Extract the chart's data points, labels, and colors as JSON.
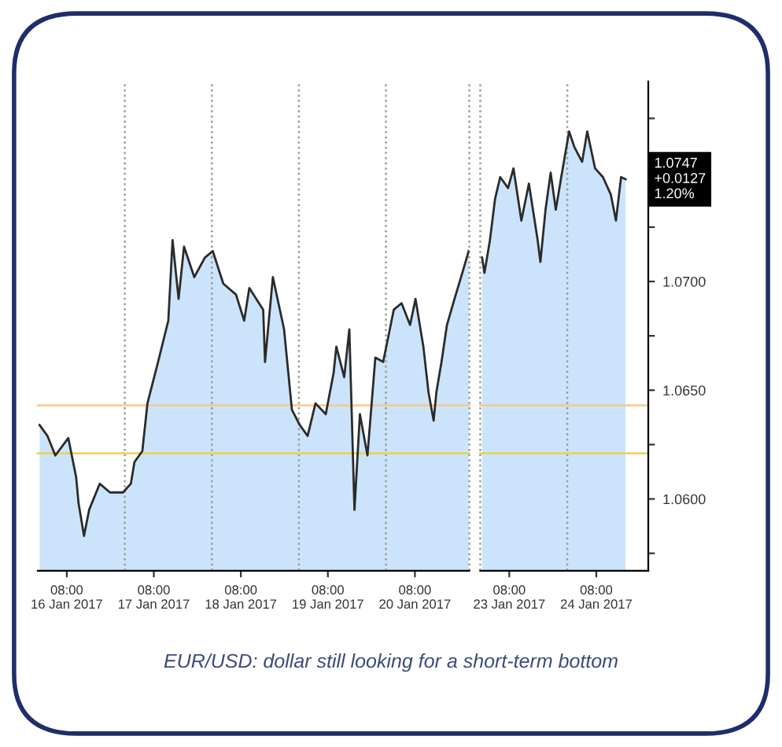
{
  "chart_data": [
    {
      "type": "area",
      "x": [
        "2017-01-16T00:30",
        "2017-01-16T02:40",
        "2017-01-16T04:50",
        "2017-01-16T08:25",
        "2017-01-16T10:35",
        "2017-01-16T11:15",
        "2017-01-16T12:45",
        "2017-01-16T14:10",
        "2017-01-16T17:05",
        "2017-01-16T19:55",
        "2017-01-16T23:30",
        "2017-01-17T01:40",
        "2017-01-17T02:40",
        "2017-01-17T04:50",
        "2017-01-17T06:15",
        "2017-01-17T09:10",
        "2017-01-17T12:00",
        "2017-01-17T13:10",
        "2017-01-17T14:50",
        "2017-01-17T16:20",
        "2017-01-17T19:10",
        "2017-01-17T22:05",
        "2017-01-18T00:15",
        "2017-01-18T03:10",
        "2017-01-18T06:40",
        "2017-01-18T08:55",
        "2017-01-18T10:20",
        "2017-01-18T14:10",
        "2017-01-18T14:40",
        "2017-01-18T16:50",
        "2017-01-18T19:55",
        "2017-01-18T22:05",
        "2017-01-19T00:15",
        "2017-01-19T02:25",
        "2017-01-19T04:35",
        "2017-01-19T07:25",
        "2017-01-19T09:35",
        "2017-01-19T10:20",
        "2017-01-19T12:30",
        "2017-01-19T13:55",
        "2017-01-19T15:20",
        "2017-01-19T16:50",
        "2017-01-19T18:55",
        "2017-01-19T21:05",
        "2017-01-19T23:15",
        "2017-01-20T02:10",
        "2017-01-20T04:20",
        "2017-01-20T06:40",
        "2017-01-20T08:10",
        "2017-01-20T10:20",
        "2017-01-20T11:45",
        "2017-01-20T13:10",
        "2017-01-20T13:55",
        "2017-01-20T15:20",
        "2017-01-20T16:50",
        "2017-01-20T18:55",
        "2017-01-20T21:05",
        "2017-01-20T22:50"
      ],
      "series": [
        {
          "color": "#cce4fb",
          "values": [
            1.0634,
            1.0629,
            1.062,
            1.0628,
            1.061,
            1.0598,
            1.0583,
            1.0595,
            1.0607,
            1.0603,
            1.0603,
            1.0607,
            1.0617,
            1.0622,
            1.0644,
            1.0663,
            1.0682,
            1.0719,
            1.0692,
            1.0716,
            1.0702,
            1.0711,
            1.0714,
            1.0699,
            1.0694,
            1.0682,
            1.0697,
            1.0687,
            1.0663,
            1.0702,
            1.0678,
            1.0641,
            1.0634,
            1.0629,
            1.0644,
            1.0639,
            1.0658,
            1.067,
            1.0656,
            1.0678,
            1.0595,
            1.0639,
            1.062,
            1.0665,
            1.0663,
            1.0687,
            1.069,
            1.068,
            1.0692,
            1.067,
            1.0649,
            1.0636,
            1.0649,
            1.0663,
            1.068,
            1.0692,
            1.0704,
            1.0714
          ]
        }
      ],
      "xlim": [
        "2017-01-16T00:00",
        "2017-01-20T23:00"
      ],
      "xticks": [
        {
          "value": "2017-01-16T08:00",
          "label": "08:00\n16 Jan 2017"
        },
        {
          "value": "2017-01-17T08:00",
          "label": "08:00\n17 Jan 2017"
        },
        {
          "value": "2017-01-18T08:00",
          "label": "08:00\n18 Jan 2017"
        },
        {
          "value": "2017-01-19T08:00",
          "label": "08:00\n19 Jan 2017"
        },
        {
          "value": "2017-01-20T08:00",
          "label": "08:00\n20 Jan 2017"
        }
      ],
      "ylim": [
        1.0567,
        1.0792
      ],
      "tick_labels": "x",
      "ref_lines": [
        {
          "axis": "x",
          "value": "2017-01-17T00:00",
          "color": "#9a9a9a",
          "line_style": "dotted"
        },
        {
          "axis": "x",
          "value": "2017-01-18T00:00",
          "color": "#9a9a9a",
          "line_style": "dotted"
        },
        {
          "axis": "x",
          "value": "2017-01-19T00:00",
          "color": "#9a9a9a",
          "line_style": "dotted"
        },
        {
          "axis": "x",
          "value": "2017-01-20T00:00",
          "color": "#9a9a9a",
          "line_style": "dotted"
        },
        {
          "axis": "x",
          "value": "2017-01-20T23:00",
          "color": "#9a9a9a",
          "line_style": "dotted"
        },
        {
          "axis": "y",
          "value": 1.0643,
          "color": "#f5c98a",
          "line_style": "solid"
        },
        {
          "axis": "y",
          "value": 1.0621,
          "color": "#e3d64a",
          "line_style": "solid"
        }
      ],
      "annotations": [
        "EUR/USD: dollar still looking for a short-term bottom"
      ]
    },
    {
      "type": "area",
      "x": [
        "2017-01-23T00:30",
        "2017-01-23T01:10",
        "2017-01-23T02:40",
        "2017-01-23T04:05",
        "2017-01-23T05:30",
        "2017-01-23T07:40",
        "2017-01-23T09:10",
        "2017-01-23T11:20",
        "2017-01-23T13:25",
        "2017-01-23T15:50",
        "2017-01-23T16:35",
        "2017-01-23T18:00",
        "2017-01-23T19:25",
        "2017-01-23T20:50",
        "2017-01-23T22:20",
        "2017-01-24T00:30",
        "2017-01-24T01:55",
        "2017-01-24T04:05",
        "2017-01-24T05:30",
        "2017-01-24T07:40",
        "2017-01-24T09:50",
        "2017-01-24T12:00",
        "2017-01-24T13:25",
        "2017-01-24T14:50",
        "2017-01-24T16:05"
      ],
      "series": [
        {
          "color": "#cce4fb",
          "values": [
            1.0711,
            1.0704,
            1.0719,
            1.0738,
            1.0748,
            1.0743,
            1.0752,
            1.0728,
            1.0745,
            1.0719,
            1.0709,
            1.0733,
            1.075,
            1.0733,
            1.0748,
            1.0769,
            1.0762,
            1.0755,
            1.0769,
            1.0752,
            1.0748,
            1.074,
            1.0728,
            1.0748,
            1.0747
          ]
        }
      ],
      "xlim": [
        "2017-01-23T00:00",
        "2017-01-24T22:20"
      ],
      "xticks": [
        {
          "value": "2017-01-23T08:00",
          "label": "08:00\n23 Jan 2017"
        },
        {
          "value": "2017-01-24T08:00",
          "label": "08:00\n24 Jan 2017"
        }
      ],
      "ylim": [
        1.0567,
        1.0792
      ],
      "yticks": [
        {
          "value": 1.0575,
          "label": null
        },
        {
          "value": 1.06,
          "label": "1.0600"
        },
        {
          "value": 1.0625,
          "label": null
        },
        {
          "value": 1.065,
          "label": "1.0650"
        },
        {
          "value": 1.0675,
          "label": null
        },
        {
          "value": 1.07,
          "label": "1.0700"
        },
        {
          "value": 1.0725,
          "label": null
        },
        {
          "value": 1.0775,
          "label": null
        }
      ],
      "ref_lines": [
        {
          "axis": "x",
          "value": "2017-01-23T00:00",
          "color": "#9a9a9a",
          "line_style": "dotted"
        },
        {
          "axis": "x",
          "value": "2017-01-24T00:00",
          "color": "#9a9a9a",
          "line_style": "dotted"
        },
        {
          "axis": "y",
          "value": 1.0643,
          "color": "#f5c98a",
          "line_style": "solid"
        },
        {
          "axis": "y",
          "value": 1.0621,
          "color": "#e3d64a",
          "line_style": "solid"
        }
      ],
      "annotations": [
        "1.0747\n+0.0127\n1.20%"
      ]
    }
  ]
}
